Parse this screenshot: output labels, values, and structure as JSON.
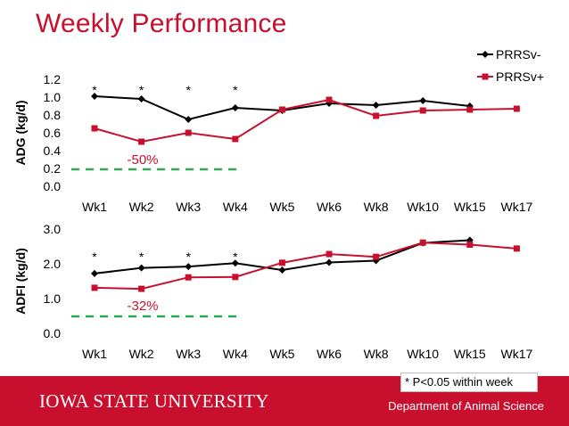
{
  "slide": {
    "title": "Weekly Performance",
    "footer_university": "IOWA STATE UNIVERSITY",
    "footer_department": "Department of Animal Science",
    "note": "* P<0.05 within week"
  },
  "colors": {
    "brand_red": "#c8102e",
    "series_neg": "#000000",
    "series_pos": "#c8102e",
    "dash_green": "#2fa84f"
  },
  "chart_data": [
    {
      "type": "line",
      "ylabel": "ADG (kg/d)",
      "xlabel": "",
      "categories": [
        "Wk1",
        "Wk2",
        "Wk3",
        "Wk4",
        "Wk5",
        "Wk6",
        "Wk8",
        "Wk10",
        "Wk15",
        "Wk17"
      ],
      "ylim": [
        0,
        1.2
      ],
      "yticks": [
        "0.0",
        "0.2",
        "0.4",
        "0.6",
        "0.8",
        "1.0",
        "1.2"
      ],
      "series": [
        {
          "name": "PRRSv-",
          "marker": "diamond",
          "values": [
            1.01,
            0.98,
            0.75,
            0.88,
            0.85,
            0.93,
            0.91,
            0.96,
            0.9,
            null
          ]
        },
        {
          "name": "PRRSv+",
          "marker": "square",
          "values": [
            0.65,
            0.5,
            0.6,
            0.53,
            0.86,
            0.97,
            0.79,
            0.85,
            0.86,
            0.87
          ]
        }
      ],
      "significance": [
        "*",
        "*",
        "*",
        "*"
      ],
      "annotation": "-50%",
      "legend": [
        "PRRSv-",
        "PRRSv+"
      ]
    },
    {
      "type": "line",
      "ylabel": "ADFI (kg/d)",
      "xlabel": "",
      "categories": [
        "Wk1",
        "Wk2",
        "Wk3",
        "Wk4",
        "Wk5",
        "Wk6",
        "Wk8",
        "Wk10",
        "Wk15",
        "Wk17"
      ],
      "ylim": [
        0,
        3.0
      ],
      "yticks": [
        "0.0",
        "1.0",
        "2.0",
        "3.0"
      ],
      "series": [
        {
          "name": "PRRSv-",
          "marker": "diamond",
          "values": [
            1.72,
            1.88,
            1.92,
            2.02,
            1.82,
            2.04,
            2.09,
            2.6,
            2.68,
            null
          ]
        },
        {
          "name": "PRRSv+",
          "marker": "square",
          "values": [
            1.31,
            1.28,
            1.61,
            1.62,
            2.03,
            2.28,
            2.2,
            2.61,
            2.55,
            2.44
          ]
        }
      ],
      "significance": [
        "*",
        "*",
        "*",
        "*"
      ],
      "annotation": "-32%"
    }
  ]
}
